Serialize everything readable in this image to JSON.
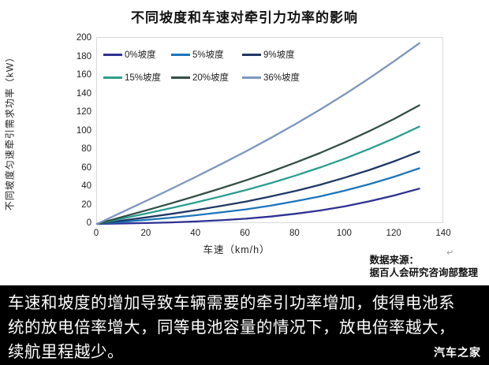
{
  "page": {
    "title": "不同坡度和车速对牵引力功率的影响",
    "source_line1": "数据来源：",
    "source_line2": "据百人会研究咨询部整理",
    "return_mark": "↵",
    "caption": "车速和坡度的增加导致车辆需要的牵引功率增加，使得电池系统的放电倍率增大，同等电池容量的情况下，放电倍率越大，续航里程越少。",
    "watermark": "汽车之家"
  },
  "chart_data": {
    "type": "line",
    "title": "不同坡度和车速对牵引力功率的影响",
    "xlabel": "车速（km/h）",
    "ylabel": "不同坡度匀速牵引需求功率（kW）",
    "xlim": [
      0,
      140
    ],
    "ylim": [
      0,
      200
    ],
    "x_ticks": [
      0,
      20,
      40,
      60,
      80,
      100,
      120,
      140
    ],
    "y_ticks": [
      0,
      20,
      40,
      60,
      80,
      100,
      120,
      140,
      160,
      180,
      200
    ],
    "grid": false,
    "legend_position": "top-left-inside",
    "x": [
      0,
      10,
      20,
      30,
      40,
      50,
      60,
      70,
      80,
      90,
      100,
      110,
      120,
      130
    ],
    "series": [
      {
        "name": "0%坡度",
        "color": "#2e3192",
        "values": [
          0,
          0.4,
          0.9,
          1.6,
          2.6,
          3.9,
          5.6,
          7.9,
          10.9,
          14.5,
          19,
          24.4,
          30.7,
          38
        ]
      },
      {
        "name": "5%坡度",
        "color": "#1c75bc",
        "values": [
          0,
          2.1,
          4.3,
          6.7,
          9.4,
          12.4,
          15.7,
          19.7,
          24.4,
          29.7,
          36,
          43,
          51,
          60
        ]
      },
      {
        "name": "9%坡度",
        "color": "#1f3864",
        "values": [
          0,
          3.5,
          7.1,
          10.8,
          14.9,
          19.3,
          24.1,
          29.5,
          35.5,
          42.2,
          50,
          58.3,
          67.7,
          78
        ]
      },
      {
        "name": "15%坡度",
        "color": "#2b9e8f",
        "values": [
          0,
          5.6,
          11.2,
          17.1,
          23.2,
          29.7,
          36.5,
          43.9,
          52.1,
          60.9,
          70.5,
          81.1,
          92.5,
          105
        ]
      },
      {
        "name": "20%坡度",
        "color": "#334f46",
        "values": [
          0,
          7.3,
          14.7,
          22.3,
          30.2,
          38.4,
          47,
          56.2,
          66.1,
          76.6,
          88,
          100.3,
          113.5,
          128
        ]
      },
      {
        "name": "36%坡度",
        "color": "#7d96be",
        "values": [
          0,
          12.5,
          25.1,
          37.9,
          51,
          64.4,
          78.2,
          92.6,
          107.7,
          123.4,
          140,
          157.5,
          175.9,
          195
        ]
      }
    ]
  }
}
